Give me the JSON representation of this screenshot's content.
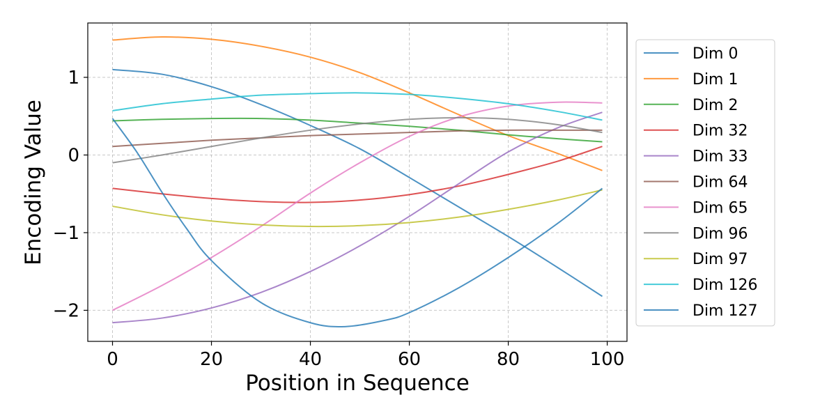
{
  "chart_data": {
    "type": "line",
    "title": "",
    "xlabel": "Position in Sequence",
    "ylabel": "Encoding Value",
    "xlim": [
      -5,
      104
    ],
    "ylim": [
      -2.4,
      1.7
    ],
    "xticks": [
      0,
      20,
      40,
      60,
      80,
      100
    ],
    "yticks": [
      -2,
      -1,
      0,
      1
    ],
    "grid": true,
    "legend_position": "right-outside",
    "series": [
      {
        "name": "Dim 0",
        "color": "#1f77b4",
        "x": [
          0,
          10,
          20,
          30,
          40,
          50,
          60,
          70,
          80,
          90,
          99
        ],
        "y": [
          1.1,
          1.04,
          0.88,
          0.65,
          0.38,
          0.08,
          -0.29,
          -0.67,
          -1.05,
          -1.45,
          -1.82
        ]
      },
      {
        "name": "Dim 1",
        "color": "#ff7f0e",
        "x": [
          0,
          10,
          20,
          30,
          40,
          50,
          60,
          70,
          80,
          90,
          99
        ],
        "y": [
          1.48,
          1.52,
          1.49,
          1.4,
          1.26,
          1.06,
          0.8,
          0.52,
          0.25,
          0.02,
          -0.2
        ]
      },
      {
        "name": "Dim 2",
        "color": "#2ca02c",
        "x": [
          0,
          10,
          20,
          30,
          40,
          50,
          60,
          70,
          80,
          90,
          99
        ],
        "y": [
          0.44,
          0.46,
          0.47,
          0.47,
          0.45,
          0.41,
          0.37,
          0.32,
          0.26,
          0.21,
          0.17
        ]
      },
      {
        "name": "Dim 32",
        "color": "#d62728",
        "x": [
          0,
          10,
          20,
          30,
          40,
          50,
          60,
          70,
          80,
          90,
          99
        ],
        "y": [
          -0.43,
          -0.5,
          -0.56,
          -0.6,
          -0.61,
          -0.58,
          -0.51,
          -0.4,
          -0.25,
          -0.08,
          0.11
        ]
      },
      {
        "name": "Dim 33",
        "color": "#9467bd",
        "x": [
          0,
          10,
          20,
          30,
          40,
          50,
          60,
          70,
          80,
          90,
          99
        ],
        "y": [
          -2.16,
          -2.1,
          -1.97,
          -1.77,
          -1.5,
          -1.17,
          -0.79,
          -0.37,
          0.04,
          0.35,
          0.55
        ]
      },
      {
        "name": "Dim 64",
        "color": "#8c564b",
        "x": [
          0,
          10,
          20,
          30,
          40,
          50,
          60,
          70,
          80,
          90,
          99
        ],
        "y": [
          0.11,
          0.15,
          0.19,
          0.22,
          0.25,
          0.27,
          0.29,
          0.31,
          0.32,
          0.32,
          0.32
        ]
      },
      {
        "name": "Dim 65",
        "color": "#e377c2",
        "x": [
          0,
          10,
          20,
          30,
          40,
          50,
          60,
          70,
          80,
          90,
          99
        ],
        "y": [
          -2.0,
          -1.68,
          -1.32,
          -0.92,
          -0.49,
          -0.1,
          0.24,
          0.49,
          0.63,
          0.68,
          0.67
        ]
      },
      {
        "name": "Dim 96",
        "color": "#7f7f7f",
        "x": [
          0,
          10,
          20,
          30,
          40,
          50,
          60,
          70,
          80,
          90,
          99
        ],
        "y": [
          -0.1,
          0.0,
          0.11,
          0.22,
          0.32,
          0.4,
          0.46,
          0.48,
          0.46,
          0.39,
          0.29
        ]
      },
      {
        "name": "Dim 97",
        "color": "#bcbd22",
        "x": [
          0,
          10,
          20,
          30,
          40,
          50,
          60,
          70,
          80,
          90,
          99
        ],
        "y": [
          -0.66,
          -0.77,
          -0.85,
          -0.9,
          -0.92,
          -0.91,
          -0.87,
          -0.8,
          -0.7,
          -0.58,
          -0.45
        ]
      },
      {
        "name": "Dim 126",
        "color": "#17becf",
        "x": [
          0,
          10,
          20,
          30,
          40,
          50,
          60,
          70,
          80,
          90,
          99
        ],
        "y": [
          0.57,
          0.66,
          0.72,
          0.77,
          0.79,
          0.8,
          0.78,
          0.73,
          0.66,
          0.56,
          0.45
        ]
      },
      {
        "name": "Dim 127",
        "color": "#1f77b4",
        "x": [
          0,
          5,
          10,
          15,
          20,
          30,
          40,
          47,
          55,
          60,
          70,
          80,
          90,
          99
        ],
        "y": [
          0.47,
          0.03,
          -0.48,
          -0.95,
          -1.36,
          -1.9,
          -2.16,
          -2.21,
          -2.13,
          -2.03,
          -1.71,
          -1.32,
          -0.88,
          -0.43
        ]
      }
    ]
  }
}
